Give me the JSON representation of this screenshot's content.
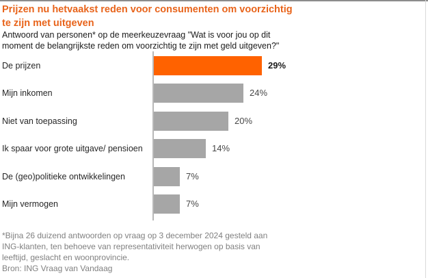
{
  "header": {
    "title": "Prijzen nu hetvaakst reden voor consumenten om voorzichtig\nte zijn met uitgeven",
    "subtitle": "Antwoord van personen* op de meerkeuzevraag \"Wat is voor jou op dit\nmoment de belangrijkste reden om voorzichtig te zijn met geld uitgeven?\""
  },
  "footer": {
    "footnote": "*Bijna 26 duizend antwoorden op vraag op 3 december 2024 gesteld aan\nING-klanten, ten behoeve van representativiteit herwogen op basis van\nleeftijd, geslacht en woonprovincie.",
    "source": "Bron: ING Vraag van Vandaag"
  },
  "chart_data": {
    "type": "bar",
    "orientation": "horizontal",
    "title": "Prijzen nu hetvaakst reden voor consumenten om voorzichtig te zijn met uitgeven",
    "subtitle": "Antwoord van personen* op de meerkeuzevraag \"Wat is voor jou op dit moment de belangrijkste reden om voorzichtig te zijn met geld uitgeven?\"",
    "categories": [
      "De prijzen",
      "Mijn inkomen",
      "Niet van toepassing",
      "Ik spaar voor grote uitgave/ pensioen",
      "De (geo)politieke ontwikkelingen",
      "Mijn vermogen"
    ],
    "values": [
      29,
      24,
      20,
      14,
      7,
      7
    ],
    "unit": "%",
    "xlim": [
      0,
      32
    ],
    "grid": false,
    "legend": false,
    "data_labels": true,
    "highlight_index": 0,
    "colors": {
      "highlight": "#ff6200",
      "default": "#a6a6a6",
      "title": "#e8641b",
      "footnote_gray": "#808080"
    }
  }
}
